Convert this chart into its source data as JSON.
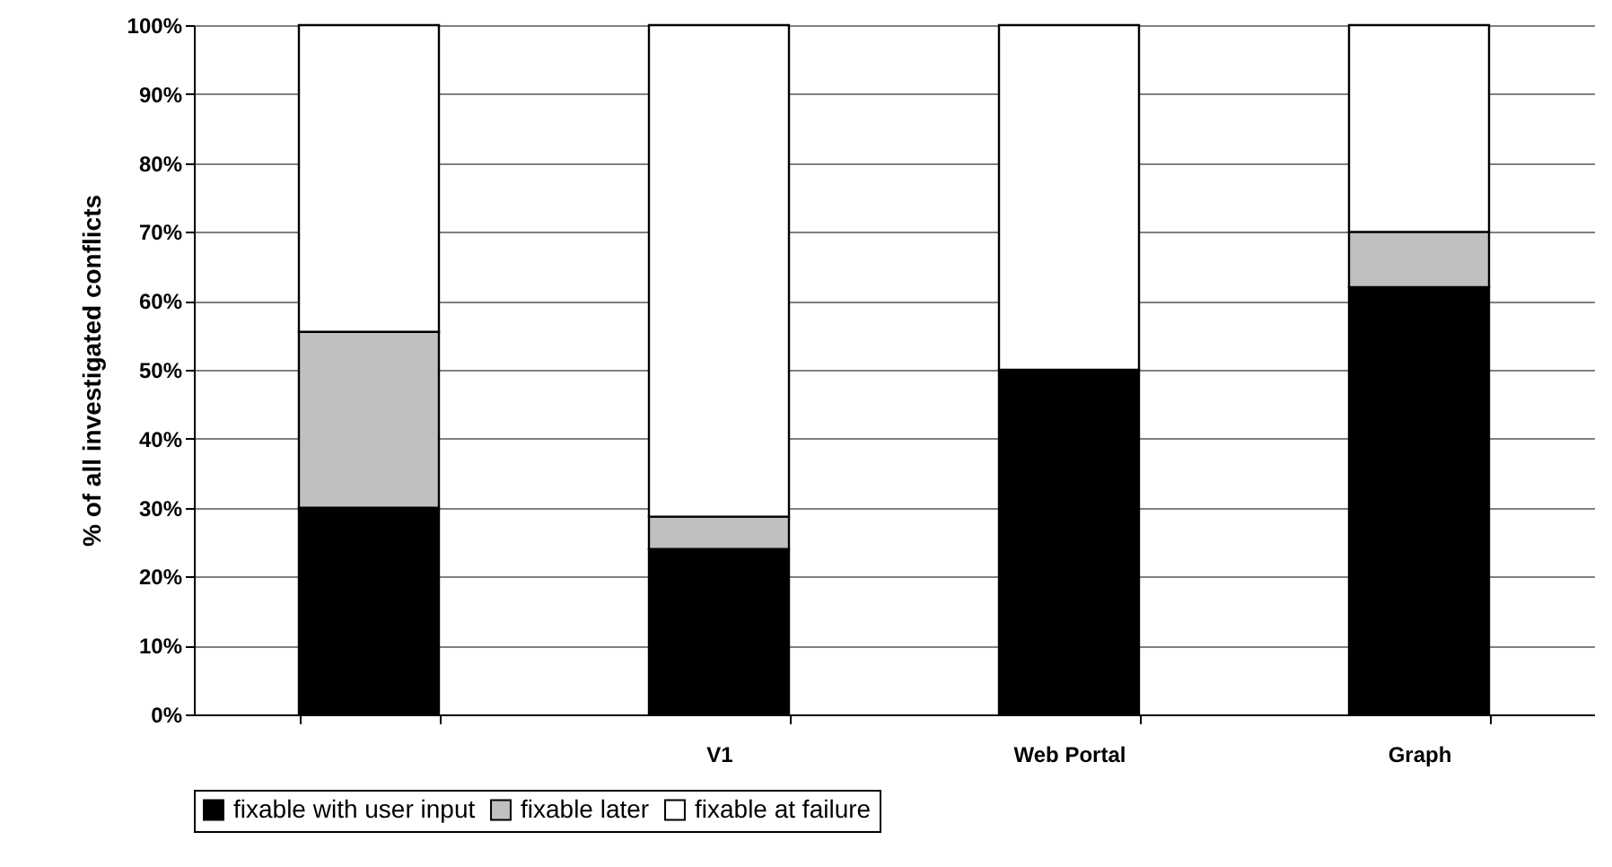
{
  "chart_data": {
    "type": "bar",
    "stacked": true,
    "ylabel": "% of all investigated conflicts",
    "categories": [
      null,
      "V1",
      "Web Portal",
      "Graph"
    ],
    "series": [
      {
        "name": "fixable with user input",
        "color": "#000000",
        "values": [
          30,
          24,
          50,
          62
        ]
      },
      {
        "name": "fixable later",
        "color": "#c0c0c0",
        "values": [
          25.5,
          4.7,
          0,
          8
        ]
      },
      {
        "name": "fixable at failure",
        "color": "#ffffff",
        "values": [
          44.5,
          71.3,
          50,
          30
        ]
      }
    ],
    "ylim": [
      0,
      100
    ],
    "yticks": [
      {
        "value": 0,
        "label": "0%"
      },
      {
        "value": 10,
        "label": "10%"
      },
      {
        "value": 20,
        "label": "20%"
      },
      {
        "value": 30,
        "label": "30%"
      },
      {
        "value": 40,
        "label": "40%"
      },
      {
        "value": 50,
        "label": "50%"
      },
      {
        "value": 60,
        "label": "60%"
      },
      {
        "value": 70,
        "label": "70%"
      },
      {
        "value": 80,
        "label": "80%"
      },
      {
        "value": 90,
        "label": "90%"
      },
      {
        "value": 100,
        "label": "100%"
      }
    ],
    "grid": "y",
    "legend": "bottom"
  }
}
